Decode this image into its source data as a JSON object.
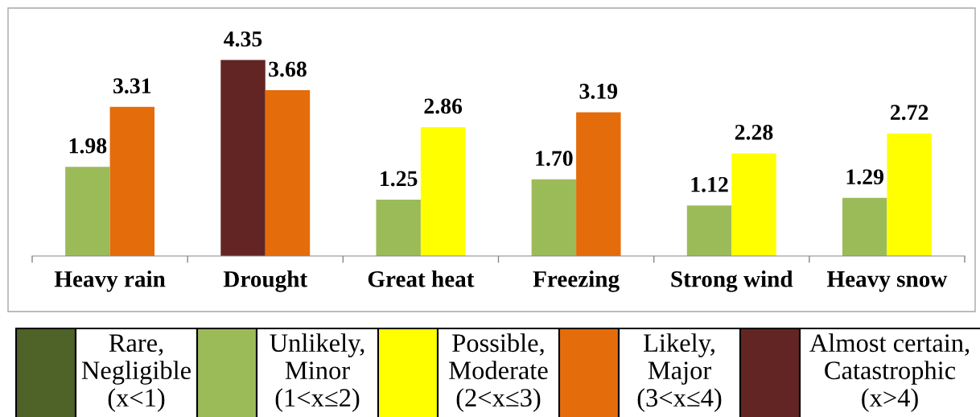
{
  "chart_data": [
    {
      "type": "bar",
      "categories": [
        "Heavy rain",
        "Drought",
        "Great heat",
        "Freezing",
        "Strong wind",
        "Heavy snow"
      ],
      "series": [
        {
          "values": [
            1.98,
            4.35,
            1.25,
            1.7,
            1.12,
            1.29
          ],
          "value_labels": [
            "1.98",
            "4.35",
            "1.25",
            "1.70",
            "1.12",
            "1.29"
          ],
          "colors": [
            "#9bbb59",
            "#632523",
            "#9bbb59",
            "#9bbb59",
            "#9bbb59",
            "#9bbb59"
          ]
        },
        {
          "values": [
            3.31,
            3.68,
            2.86,
            3.19,
            2.28,
            2.72
          ],
          "value_labels": [
            "3.31",
            "3.68",
            "2.86",
            "3.19",
            "2.28",
            "2.72"
          ],
          "colors": [
            "#e46c0a",
            "#e46c0a",
            "#ffff00",
            "#e46c0a",
            "#ffff00",
            "#ffff00"
          ]
        }
      ]
    },
    {
      "type": "other",
      "categories": [
        "Rare,\nNegligible\n(x<1)",
        "Unlikely,\nMinor\n(1<x≤2)",
        "Possible,\nModerate\n(2<x≤3)",
        "Likely,\nMajor\n(3<x≤4)",
        "Almost certain,\nCatastrophic\n(x>4)"
      ],
      "colors": [
        "#4f6228",
        "#9bbb59",
        "#ffff00",
        "#e46c0a",
        "#632523"
      ]
    }
  ]
}
